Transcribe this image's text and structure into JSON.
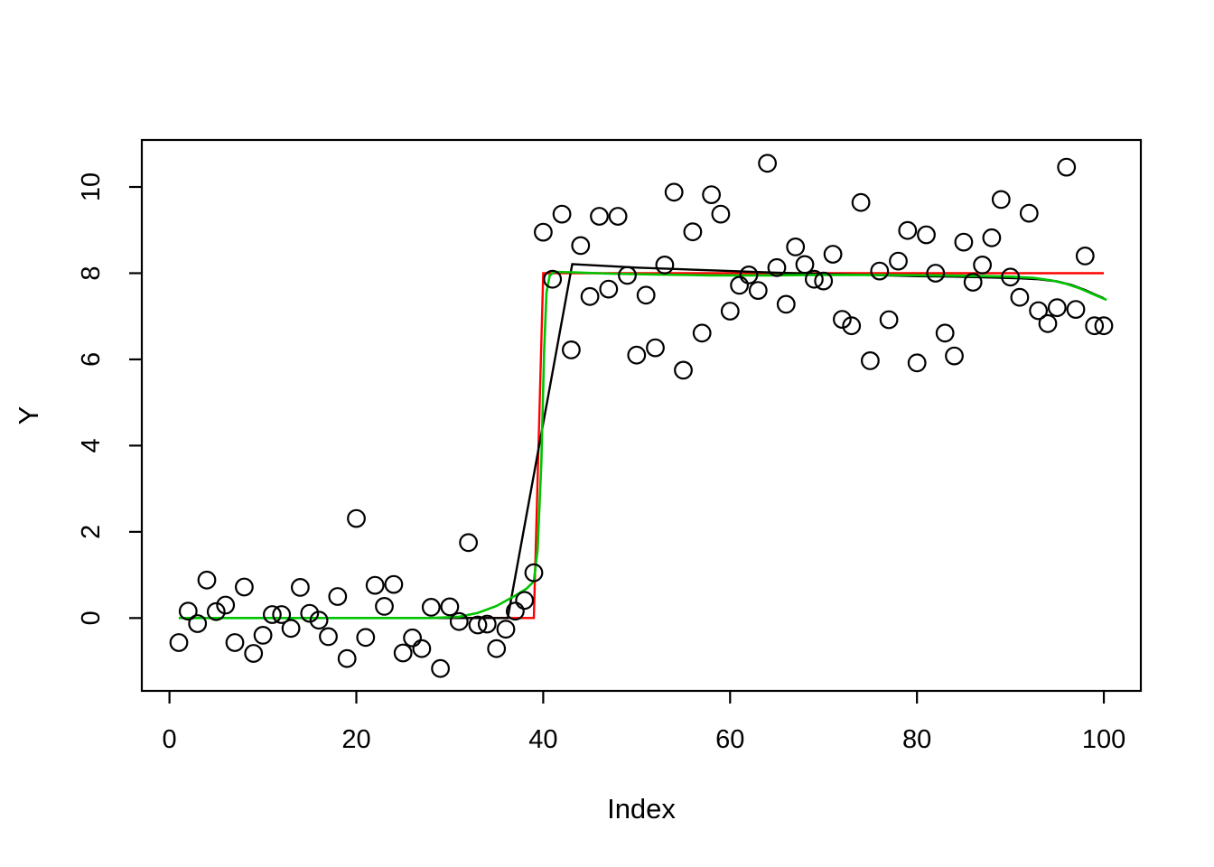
{
  "chart_data": {
    "type": "scatter",
    "title": "",
    "xlabel": "Index",
    "ylabel": "Y",
    "x_ticks": [
      0,
      20,
      40,
      60,
      80,
      100
    ],
    "y_ticks": [
      0,
      2,
      4,
      6,
      8,
      10
    ],
    "xlim": [
      -2.96,
      103.96
    ],
    "ylim": [
      -1.69,
      11.09
    ],
    "grid": false,
    "legend": null,
    "marker": {
      "shape": "open-circle",
      "color": "#000000",
      "radius": 9.3,
      "stroke_width": 2.2
    },
    "points": {
      "x": [
        1,
        2,
        3,
        4,
        5,
        6,
        7,
        8,
        9,
        10,
        11,
        12,
        13,
        14,
        15,
        16,
        17,
        18,
        19,
        20,
        21,
        22,
        23,
        24,
        25,
        26,
        27,
        28,
        29,
        30,
        31,
        32,
        33,
        34,
        35,
        36,
        37,
        38,
        39,
        40,
        41,
        42,
        43,
        44,
        45,
        46,
        47,
        48,
        49,
        50,
        51,
        52,
        53,
        54,
        55,
        56,
        57,
        58,
        59,
        60,
        61,
        62,
        63,
        64,
        65,
        66,
        67,
        68,
        69,
        70,
        71,
        72,
        73,
        74,
        75,
        76,
        77,
        78,
        79,
        80,
        81,
        82,
        83,
        84,
        85,
        86,
        87,
        88,
        89,
        90,
        91,
        92,
        93,
        94,
        95,
        96,
        97,
        98,
        99,
        100
      ],
      "y": [
        -0.57,
        0.16,
        -0.13,
        0.88,
        0.15,
        0.3,
        -0.57,
        0.72,
        -0.82,
        -0.4,
        0.08,
        0.08,
        -0.24,
        0.71,
        0.11,
        -0.05,
        -0.43,
        0.5,
        -0.94,
        2.31,
        -0.45,
        0.76,
        0.27,
        0.78,
        -0.81,
        -0.46,
        -0.71,
        0.25,
        -1.17,
        0.26,
        -0.08,
        1.75,
        -0.16,
        -0.14,
        -0.71,
        -0.26,
        0.16,
        0.41,
        1.05,
        8.95,
        7.86,
        9.37,
        6.22,
        8.64,
        7.46,
        9.32,
        7.63,
        9.32,
        7.95,
        6.1,
        7.49,
        6.27,
        8.19,
        9.88,
        5.75,
        8.96,
        6.61,
        9.82,
        9.37,
        7.12,
        7.72,
        7.96,
        7.6,
        10.55,
        8.13,
        7.28,
        8.61,
        8.2,
        7.86,
        7.82,
        8.44,
        6.93,
        6.78,
        9.64,
        5.97,
        8.05,
        6.92,
        8.28,
        8.99,
        5.92,
        8.89,
        8.0,
        6.61,
        6.08,
        8.72,
        7.79,
        8.19,
        8.82,
        9.71,
        7.91,
        7.44,
        9.39,
        7.13,
        6.83,
        7.2,
        10.46,
        7.16,
        8.4,
        6.78,
        6.78
      ]
    },
    "series": [
      {
        "name": "step-line-red",
        "color": "#ff0000",
        "width": 2.4,
        "points": [
          [
            1,
            0
          ],
          [
            39,
            0
          ],
          [
            40,
            8
          ],
          [
            100,
            8
          ]
        ]
      },
      {
        "name": "fit-line-black",
        "color": "#000000",
        "width": 2.4,
        "points": [
          [
            1,
            0
          ],
          [
            36.2,
            0
          ],
          [
            43.1,
            8.21
          ],
          [
            50,
            8.13
          ],
          [
            55,
            8.09
          ],
          [
            60,
            8.05
          ],
          [
            65,
            8.01
          ],
          [
            70,
            7.98
          ],
          [
            75,
            7.96
          ],
          [
            80,
            7.93
          ],
          [
            84,
            7.92
          ],
          [
            88,
            7.9
          ],
          [
            91,
            7.88
          ],
          [
            93,
            7.86
          ],
          [
            95,
            7.81
          ],
          [
            96.5,
            7.73
          ],
          [
            98,
            7.61
          ],
          [
            99,
            7.51
          ],
          [
            100,
            7.42
          ]
        ]
      },
      {
        "name": "smooth-line-green",
        "color": "#00c400",
        "width": 2.6,
        "points": [
          [
            1,
            0
          ],
          [
            28,
            0
          ],
          [
            31,
            0.03
          ],
          [
            33,
            0.12
          ],
          [
            35,
            0.28
          ],
          [
            37,
            0.52
          ],
          [
            38.2,
            0.68
          ],
          [
            39,
            0.85
          ],
          [
            39.4,
            1.6
          ],
          [
            39.8,
            3.6
          ],
          [
            40.1,
            6.2
          ],
          [
            40.35,
            7.55
          ],
          [
            40.7,
            7.95
          ],
          [
            41.2,
            8.03
          ],
          [
            43,
            8.02
          ],
          [
            47,
            7.99
          ],
          [
            52,
            7.97
          ],
          [
            58,
            7.95
          ],
          [
            64,
            7.95
          ],
          [
            70,
            7.96
          ],
          [
            76,
            7.96
          ],
          [
            82,
            7.95
          ],
          [
            86,
            7.94
          ],
          [
            90,
            7.92
          ],
          [
            92.5,
            7.89
          ],
          [
            94.5,
            7.83
          ],
          [
            96,
            7.75
          ],
          [
            97.5,
            7.64
          ],
          [
            99,
            7.5
          ],
          [
            100.3,
            7.38
          ]
        ]
      }
    ]
  }
}
